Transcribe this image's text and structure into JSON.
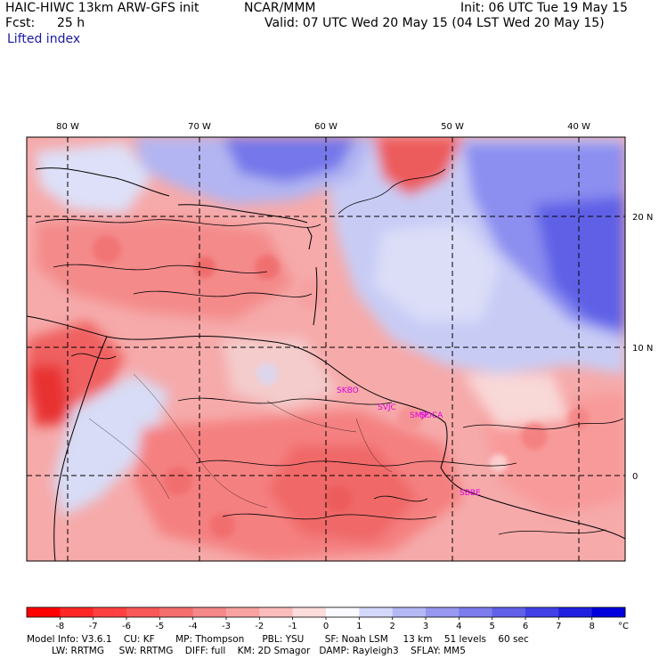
{
  "header": {
    "model_title": "HAIC-HIWC 13km ARW-GFS init",
    "org": "NCAR/MMM",
    "init": "Init: 06 UTC Tue 19 May 15",
    "fcst_label": "Fcst:",
    "fcst_value": "25 h",
    "valid": "Valid: 07 UTC Wed 20 May 15 (04 LST Wed 20 May 15)",
    "field_name": "Lifted index"
  },
  "map": {
    "lon_labels": [
      "80 W",
      "70 W",
      "60 W",
      "50 W",
      "40 W"
    ],
    "lat_labels": [
      "20 N",
      "10 N",
      "0"
    ],
    "stations": [
      "SKBO",
      "SVJC",
      "SMJP",
      "SOCA",
      "SBBE"
    ]
  },
  "colorbar": {
    "ticks": [
      "-8",
      "-7",
      "-6",
      "-5",
      "-4",
      "-3",
      "-2",
      "-1",
      "0",
      "1",
      "2",
      "3",
      "4",
      "5",
      "6",
      "7",
      "8"
    ],
    "unit": "°C",
    "colors": [
      "#ff0000",
      "#ff2626",
      "#ff4040",
      "#f85858",
      "#f56e6e",
      "#f58888",
      "#f8a2a2",
      "#fbbcbc",
      "#fddcdc",
      "#fafaff",
      "#d4d8fa",
      "#b4b8f5",
      "#9898f0",
      "#7c7ced",
      "#6060e8",
      "#4040e6",
      "#2020e0",
      "#0000dd"
    ]
  },
  "footer": {
    "line1": [
      "Model Info: V3.6.1",
      "CU: KF",
      "MP: Thompson",
      "PBL: YSU",
      "SF: Noah LSM",
      "13 km",
      "51 levels",
      "60 sec"
    ],
    "line2": [
      "LW: RRTMG",
      "SW: RRTMG",
      "DIFF: full",
      "KM: 2D Smagor",
      "DAMP: Rayleigh3",
      "SFLAY: MM5"
    ]
  }
}
